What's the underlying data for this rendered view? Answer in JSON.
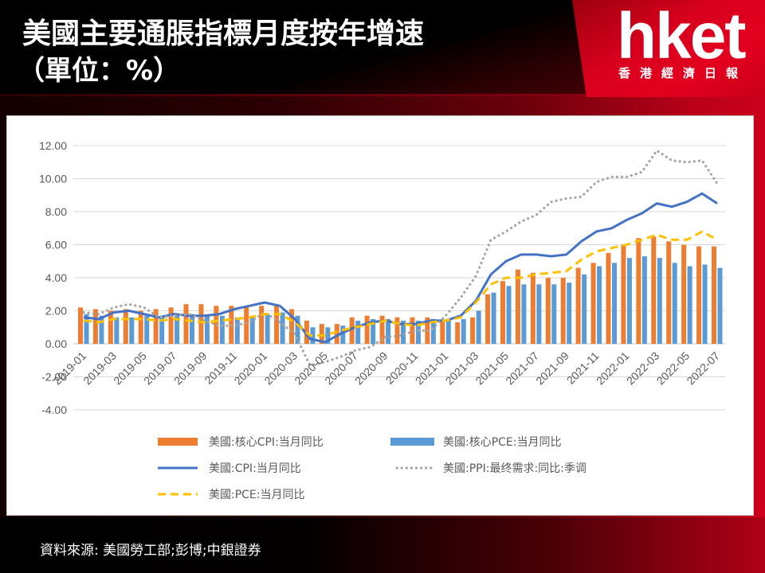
{
  "header": {
    "title": "美國主要通脹指標月度按年增速",
    "subtitle": "（單位：%）",
    "logo_text": "hket",
    "logo_subtext": "香港經濟日報"
  },
  "colors": {
    "brand_red": "#E0001F",
    "background": "#000000",
    "axis_text": "#595959",
    "gridline": "#D9D9D9"
  },
  "chart_data": {
    "type": "bar",
    "ylim": [
      -4,
      12
    ],
    "grid": true,
    "legend": "bottom",
    "yticks": [
      "12.00",
      "10.00",
      "8.00",
      "6.00",
      "4.00",
      "2.00",
      "0.00",
      "-2.00",
      "-4.00"
    ],
    "xticks": [
      "2019-01",
      "2019-03",
      "2019-05",
      "2019-07",
      "2019-09",
      "2019-11",
      "2020-01",
      "2020-03",
      "2020-05",
      "2020-07",
      "2020-09",
      "2020-11",
      "2021-01",
      "2021-03",
      "2021-05",
      "2021-07",
      "2021-09",
      "2021-11",
      "2022-01",
      "2022-03",
      "2022-05",
      "2022-07"
    ],
    "series": [
      {
        "name": "美國:核心CPI:当月同比",
        "type": "bar",
        "color": "#ED7D31",
        "values": [
          2.2,
          2.1,
          2.0,
          2.1,
          2.0,
          2.1,
          2.2,
          2.4,
          2.4,
          2.3,
          2.3,
          2.3,
          2.3,
          2.4,
          2.1,
          1.4,
          1.2,
          1.2,
          1.6,
          1.7,
          1.7,
          1.6,
          1.6,
          1.6,
          1.4,
          1.3,
          1.6,
          3.0,
          3.8,
          4.5,
          4.3,
          4.0,
          4.0,
          4.6,
          4.9,
          5.5,
          6.0,
          6.4,
          6.5,
          6.2,
          6.0,
          5.9,
          5.9
        ]
      },
      {
        "name": "美國:核心PCE:当月同比",
        "type": "bar",
        "color": "#5B9BD5",
        "values": [
          1.8,
          1.7,
          1.6,
          1.6,
          1.7,
          1.7,
          1.7,
          1.8,
          1.7,
          1.7,
          1.6,
          1.6,
          1.8,
          1.9,
          1.7,
          1.0,
          1.0,
          1.1,
          1.4,
          1.5,
          1.5,
          1.4,
          1.4,
          1.5,
          1.5,
          1.5,
          2.0,
          3.1,
          3.5,
          3.6,
          3.6,
          3.6,
          3.7,
          4.2,
          4.7,
          4.9,
          5.2,
          5.3,
          5.2,
          4.9,
          4.7,
          4.8,
          4.6
        ]
      },
      {
        "name": "美國:CPI:当月同比",
        "type": "line",
        "style": "solid",
        "color": "#4472C4",
        "values": [
          1.6,
          1.5,
          1.9,
          2.0,
          1.8,
          1.6,
          1.8,
          1.7,
          1.7,
          1.8,
          2.1,
          2.3,
          2.5,
          2.3,
          1.5,
          0.3,
          0.1,
          0.6,
          1.0,
          1.3,
          1.4,
          1.2,
          1.2,
          1.4,
          1.4,
          1.7,
          2.6,
          4.2,
          5.0,
          5.4,
          5.4,
          5.3,
          5.4,
          6.2,
          6.8,
          7.0,
          7.5,
          7.9,
          8.5,
          8.3,
          8.6,
          9.1,
          8.5
        ]
      },
      {
        "name": "美國:PPI:最终需求:同比:季调",
        "type": "line",
        "style": "dotted",
        "color": "#A5A5A5",
        "values": [
          1.9,
          1.8,
          2.2,
          2.4,
          2.2,
          1.6,
          1.7,
          1.8,
          1.4,
          1.1,
          1.1,
          1.3,
          1.9,
          1.3,
          0.6,
          -1.3,
          -1.1,
          -0.8,
          -0.4,
          -0.2,
          0.4,
          0.5,
          0.8,
          0.8,
          1.7,
          2.8,
          4.1,
          6.3,
          6.8,
          7.4,
          7.8,
          8.6,
          8.8,
          8.9,
          9.8,
          10.1,
          10.1,
          10.4,
          11.7,
          11.1,
          11.0,
          11.1,
          9.7
        ]
      },
      {
        "name": "美國:PCE:当月同比",
        "type": "line",
        "style": "dashed",
        "color": "#FFC000",
        "values": [
          1.4,
          1.3,
          1.5,
          1.5,
          1.5,
          1.4,
          1.5,
          1.4,
          1.3,
          1.4,
          1.5,
          1.6,
          1.8,
          1.8,
          1.3,
          0.5,
          0.5,
          0.8,
          1.0,
          1.2,
          1.4,
          1.2,
          1.1,
          1.3,
          1.4,
          1.6,
          2.5,
          3.6,
          4.0,
          4.0,
          4.2,
          4.3,
          4.4,
          5.1,
          5.6,
          5.8,
          6.0,
          6.3,
          6.6,
          6.3,
          6.3,
          6.8,
          6.3
        ]
      }
    ]
  },
  "source": "資料來源: 美國勞工部;彭博;中銀證券"
}
